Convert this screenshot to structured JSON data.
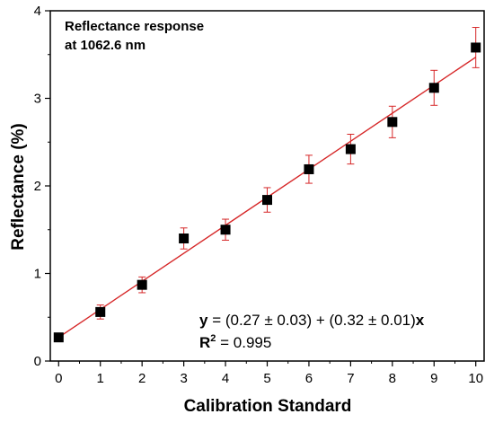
{
  "chart_data": {
    "type": "scatter",
    "title": "",
    "xlabel": "Calibration Standard",
    "ylabel": "Reflectance (%)",
    "xlim": [
      -0.2,
      10.2
    ],
    "ylim": [
      0,
      4
    ],
    "xticks": [
      0,
      1,
      2,
      3,
      4,
      5,
      6,
      7,
      8,
      9,
      10
    ],
    "yticks": [
      0,
      1,
      2,
      3,
      4
    ],
    "grid": false,
    "series": [
      {
        "x": [
          0,
          1,
          2,
          3,
          4,
          5,
          6,
          7,
          8,
          9,
          10
        ],
        "values": [
          0.27,
          0.56,
          0.87,
          1.4,
          1.5,
          1.84,
          2.19,
          2.42,
          2.73,
          3.12,
          3.58
        ],
        "error": [
          0.03,
          0.08,
          0.09,
          0.12,
          0.12,
          0.14,
          0.16,
          0.17,
          0.18,
          0.2,
          0.23
        ]
      }
    ],
    "fit": {
      "intercept": 0.27,
      "slope": 0.32,
      "x_range": [
        0,
        10
      ],
      "color": "#d62728"
    },
    "marker_color": "#000000",
    "errorbar_color": "#d62728",
    "annotations": {
      "title_line1": "Reflectance response",
      "title_line2": "at 1062.6 nm",
      "eq_y": "y",
      "eq_body": " = (0.27 ± 0.03) + (0.32 ± 0.01)",
      "eq_x": "x",
      "r2_label": "R",
      "r2_sup": "2",
      "r2_value": " = 0.995"
    }
  }
}
